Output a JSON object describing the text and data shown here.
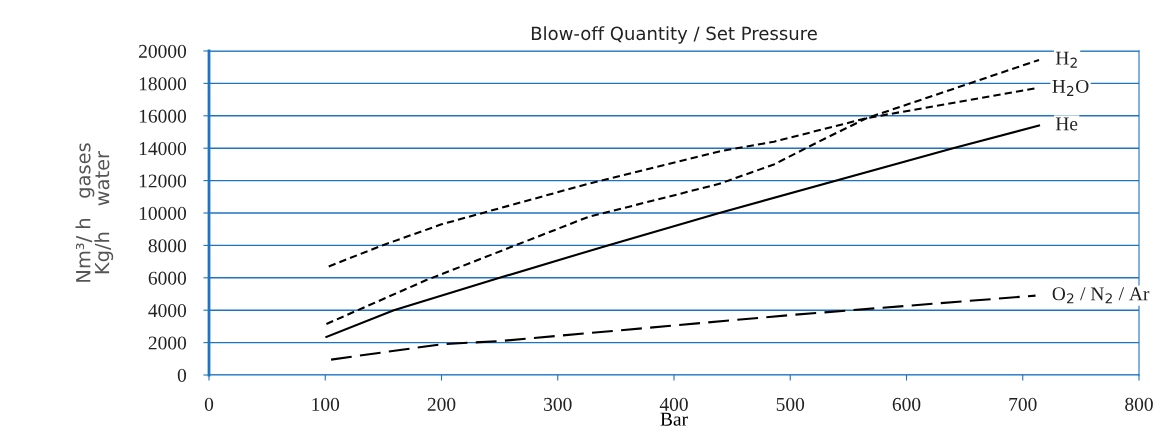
{
  "chart_data": {
    "type": "line",
    "title": "Blow-off Quantity / Set Pressure",
    "xlabel": "Bar",
    "ylabel": "Nm³/ h   gases\nKg/h    water",
    "series": [
      {
        "name": "H$_{2}$",
        "color": "#000000",
        "line_style": "dashed",
        "x": [
          101,
          187,
          326,
          439,
          486,
          530,
          566,
          714
        ],
        "values": [
          3150,
          5860,
          9750,
          11800,
          13000,
          14600,
          15860,
          19450
        ]
      },
      {
        "name": "H$_{2}$O",
        "color": "#000000",
        "line_style": "dashed",
        "x": [
          103,
          149,
          200,
          326,
          439,
          486,
          566,
          711
        ],
        "values": [
          6700,
          8000,
          9300,
          11800,
          13800,
          14400,
          15860,
          17700
        ]
      },
      {
        "name": "He",
        "color": "#000000",
        "line_style": "solid",
        "x": [
          101,
          159,
          250,
          343,
          439,
          640,
          714
        ],
        "values": [
          2350,
          4000,
          6000,
          8000,
          10000,
          14000,
          15400
        ]
      },
      {
        "name": "O$_{2}$ / N$_{2}$ / Ar",
        "color": "#000000",
        "line_style": "dashed",
        "x": [
          105,
          200,
          251,
          500,
          711
        ],
        "values": [
          950,
          1900,
          2100,
          3700,
          4900
        ]
      }
    ],
    "xlim": [
      0,
      800
    ],
    "xticks": [
      0,
      100,
      200,
      300,
      400,
      500,
      600,
      700,
      800
    ],
    "ylim": [
      0,
      20000
    ],
    "yticks": [
      0,
      2000,
      4000,
      6000,
      8000,
      10000,
      12000,
      14000,
      16000,
      18000,
      20000
    ],
    "grid": "y",
    "legend": false
  }
}
